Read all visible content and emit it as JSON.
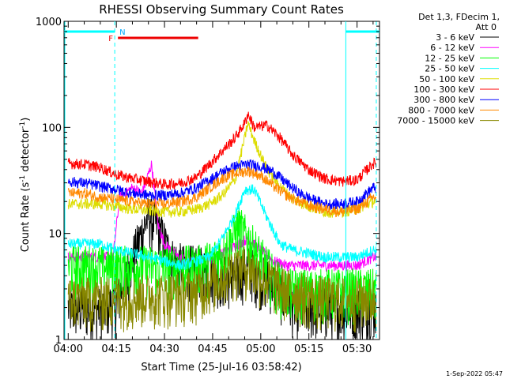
{
  "chart_data": {
    "type": "line",
    "title": "RHESSI Observing Summary Count Rates",
    "xlabel": "Start Time (25-Jul-16 03:58:42)",
    "ylabel_main": "Count Rate (s",
    "ylabel_sup1": "-1",
    "ylabel_mid": " detector",
    "ylabel_sup2": "-1",
    "ylabel_end": ")",
    "ylog": true,
    "ylim": [
      1,
      1000
    ],
    "xlim_minutes": [
      -1.3,
      97
    ],
    "x_ticks": [
      "04:00",
      "04:15",
      "04:30",
      "04:45",
      "05:00",
      "05:15",
      "05:30"
    ],
    "x_tick_minutes": [
      0,
      15,
      30,
      45,
      60,
      75,
      90
    ],
    "y_ticks": [
      "1",
      "10",
      "100",
      "1000"
    ],
    "y_tick_values": [
      1,
      10,
      100,
      1000
    ],
    "legend_header": [
      "Det 1,3, FDecim 1,",
      "Att 0"
    ],
    "timestamp": "1-Sep-2022 05:47",
    "night_labels": [
      "N"
    ],
    "flare_labels": [
      "F"
    ],
    "night_intervals_minutes": [
      [
        -1.3,
        14.5
      ],
      [
        86.5,
        97
      ]
    ],
    "flare_intervals_minutes": [
      [
        15.5,
        40.5
      ]
    ],
    "series": [
      {
        "name": "3 - 6 keV",
        "color": "#000000",
        "x": [
          0,
          10,
          15,
          20,
          25,
          28,
          32,
          36,
          40,
          44,
          48,
          52,
          56,
          60,
          64,
          68,
          72,
          76,
          80,
          85,
          90,
          95
        ],
        "values": [
          2,
          2,
          2.2,
          6,
          15,
          12,
          6,
          5,
          5,
          4.5,
          4,
          4,
          5,
          4,
          3.5,
          2.5,
          2,
          2,
          2,
          2,
          2,
          2
        ]
      },
      {
        "name": "6 - 12 keV",
        "color": "#ff00ff",
        "x": [
          0,
          10,
          14,
          16,
          20,
          23,
          26,
          28,
          30,
          34,
          38,
          42,
          46,
          50,
          53,
          56,
          60,
          64,
          68,
          72,
          76,
          80,
          85,
          90,
          95
        ],
        "values": [
          6,
          6,
          6,
          22,
          27,
          24,
          45,
          12,
          8,
          6,
          5.5,
          5.5,
          6,
          7,
          8,
          9,
          7,
          5.5,
          5,
          5,
          5,
          5,
          5,
          5,
          6
        ]
      },
      {
        "name": "12 - 25 keV",
        "color": "#00ff00",
        "x": [
          0,
          10,
          15,
          20,
          25,
          30,
          35,
          40,
          44,
          48,
          51,
          53,
          56,
          60,
          64,
          68,
          72,
          76,
          80,
          85,
          90,
          95
        ],
        "values": [
          5,
          5,
          5,
          5,
          5,
          5,
          5,
          5,
          5.5,
          6.5,
          9,
          12,
          9,
          6,
          4,
          3,
          3,
          3,
          3,
          3,
          3,
          3
        ]
      },
      {
        "name": "25 - 50 keV",
        "color": "#00ffff",
        "x": [
          0,
          10,
          15,
          20,
          25,
          30,
          35,
          40,
          44,
          48,
          52,
          55,
          58,
          62,
          66,
          70,
          75,
          80,
          85,
          90,
          95
        ],
        "values": [
          8,
          8,
          7,
          6.5,
          6,
          5.5,
          5,
          5.5,
          6,
          9,
          15,
          26,
          26,
          14,
          8,
          7,
          6.5,
          6,
          6,
          6,
          7
        ]
      },
      {
        "name": "50 - 100 keV",
        "color": "#dddd00",
        "x": [
          0,
          10,
          15,
          20,
          25,
          30,
          35,
          40,
          44,
          48,
          52,
          55,
          56,
          58,
          62,
          66,
          70,
          75,
          80,
          85,
          90,
          95
        ],
        "values": [
          19,
          19,
          18,
          17,
          16.5,
          16,
          16,
          17,
          19,
          23,
          32,
          80,
          110,
          75,
          40,
          28,
          21,
          18,
          16,
          16,
          17,
          20
        ]
      },
      {
        "name": "100 - 300 keV",
        "color": "#ff0000",
        "x": [
          0,
          5,
          10,
          15,
          20,
          25,
          30,
          35,
          40,
          44,
          48,
          52,
          55,
          56,
          58,
          62,
          66,
          70,
          75,
          80,
          85,
          90,
          95
        ],
        "values": [
          46,
          45,
          42,
          36,
          33,
          31,
          29,
          30,
          34,
          45,
          60,
          80,
          110,
          135,
          100,
          105,
          80,
          55,
          40,
          33,
          31,
          32,
          46
        ]
      },
      {
        "name": "300 - 800 keV",
        "color": "#0000ff",
        "x": [
          0,
          5,
          10,
          15,
          20,
          25,
          30,
          35,
          40,
          44,
          48,
          52,
          56,
          60,
          64,
          68,
          72,
          76,
          80,
          85,
          90,
          95
        ],
        "values": [
          31,
          30,
          28,
          26,
          24,
          23,
          23,
          24,
          27,
          32,
          38,
          43,
          45,
          43,
          38,
          30,
          24,
          21,
          19,
          19,
          20,
          27
        ]
      },
      {
        "name": "800 - 7000 keV",
        "color": "#ff8800",
        "x": [
          0,
          5,
          10,
          15,
          20,
          25,
          30,
          35,
          40,
          44,
          48,
          52,
          56,
          60,
          64,
          68,
          72,
          76,
          80,
          85,
          90,
          95
        ],
        "values": [
          24,
          24,
          22,
          21,
          20,
          19,
          19,
          20,
          22,
          27,
          33,
          37,
          39,
          35,
          28,
          23,
          20,
          18,
          17,
          16,
          17,
          22
        ]
      },
      {
        "name": "7000 - 15000 keV",
        "color": "#888800",
        "x": [
          0,
          10,
          15,
          20,
          25,
          30,
          35,
          40,
          44,
          48,
          52,
          56,
          60,
          64,
          68,
          72,
          76,
          80,
          85,
          90,
          95
        ],
        "values": [
          2.5,
          2.5,
          2.6,
          2.6,
          2.7,
          2.7,
          2.8,
          3,
          3.5,
          4,
          5,
          5,
          4,
          3.5,
          3,
          2.8,
          2.6,
          2.5,
          2.5,
          2.5,
          2.5
        ]
      }
    ]
  }
}
